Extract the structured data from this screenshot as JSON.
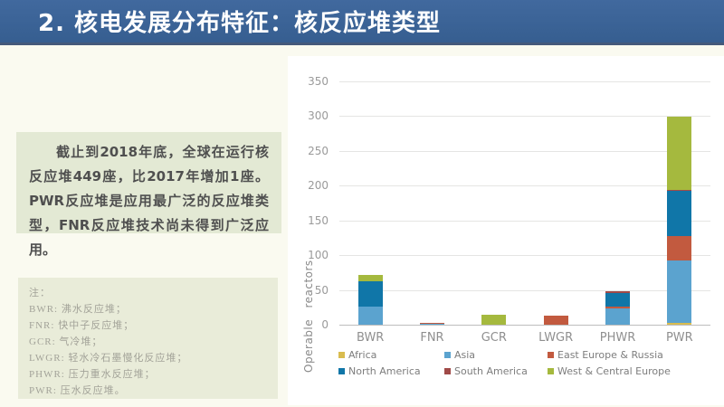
{
  "slide": {
    "title": "2. 核电发展分布特征：核反应堆类型",
    "summary_text": "截止到2018年底，全球在运行核反应堆449座，比2017年增加1座。PWR反应堆是应用最广泛的反应堆类型，FNR反应堆技术尚未得到广泛应用。",
    "notes": {
      "heading": "注：",
      "lines": [
        "BWR: 沸水反应堆；",
        "FNR: 快中子反应堆；",
        "GCR: 气冷堆；",
        "LWGR: 轻水冷石墨慢化反应堆；",
        "PHWR: 压力重水反应堆；",
        "PWR: 压水反应堆。"
      ]
    },
    "colors": {
      "banner_blue": "#3a6293",
      "summary_box_bg": "#e3e9d4",
      "notes_box_bg": "#e9ecd9"
    }
  },
  "chart_data": {
    "type": "bar",
    "stacked": true,
    "title": "",
    "xlabel": "",
    "ylabel": "Operable reactors",
    "categories": [
      "BWR",
      "FNR",
      "GCR",
      "LWGR",
      "PHWR",
      "PWR"
    ],
    "series": [
      {
        "name": "Africa",
        "color": "#d9bc4f",
        "values": [
          0,
          0,
          0,
          0,
          0,
          2
        ]
      },
      {
        "name": "Asia",
        "color": "#5ba3cf",
        "values": [
          26,
          1,
          0,
          0,
          24,
          91
        ]
      },
      {
        "name": "East Europe & Russia",
        "color": "#c25a3f",
        "values": [
          0,
          2,
          0,
          13,
          2,
          34
        ]
      },
      {
        "name": "North America",
        "color": "#1076a8",
        "values": [
          36,
          0,
          0,
          0,
          19,
          65
        ]
      },
      {
        "name": "South America",
        "color": "#a04a48",
        "values": [
          0,
          0,
          0,
          0,
          3,
          2
        ]
      },
      {
        "name": "West & Central Europe",
        "color": "#a5b93e",
        "values": [
          10,
          0,
          14,
          0,
          0,
          105
        ]
      }
    ],
    "category_totals": {
      "BWR": 72,
      "FNR": 3,
      "GCR": 14,
      "LWGR": 13,
      "PHWR": 48,
      "PWR": 299
    },
    "grand_total": 449,
    "ylim": [
      0,
      350
    ],
    "ytick_step": 50,
    "grid": true,
    "legend_position": "bottom"
  }
}
